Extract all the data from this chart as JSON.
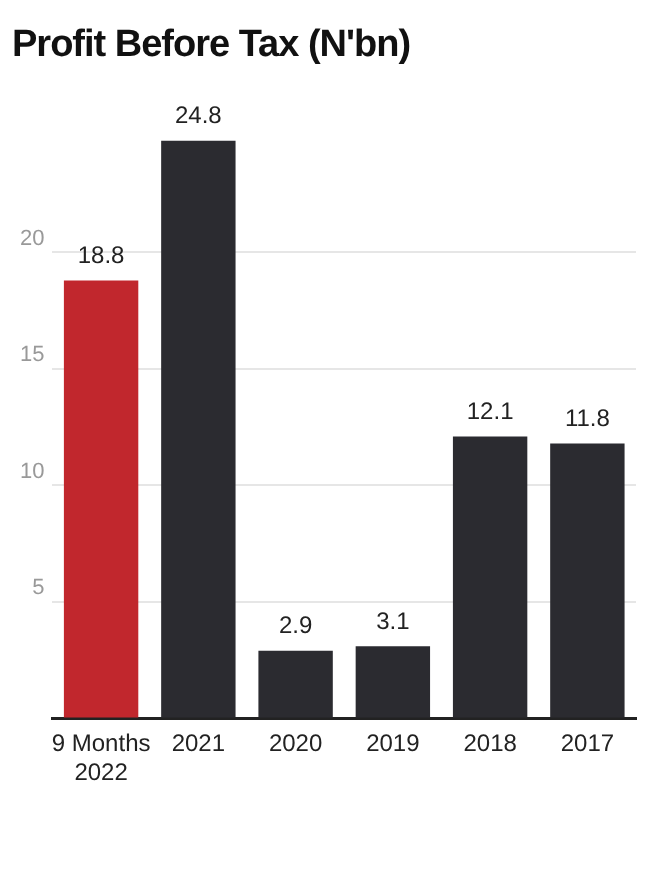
{
  "chart_data": {
    "type": "bar",
    "title": "Profit Before Tax (N'bn)",
    "categories": [
      "9 Months\n2022",
      "2021",
      "2020",
      "2019",
      "2018",
      "2017"
    ],
    "values": [
      18.8,
      24.8,
      2.9,
      3.1,
      12.1,
      11.8
    ],
    "colors": [
      "#c1272d",
      "#2b2b30",
      "#2b2b30",
      "#2b2b30",
      "#2b2b30",
      "#2b2b30"
    ],
    "ylim": [
      0,
      25
    ],
    "yticks": [
      {
        "value": 0,
        "label": null
      },
      5,
      10,
      15,
      20
    ],
    "grid": "y",
    "data_labels": true
  }
}
